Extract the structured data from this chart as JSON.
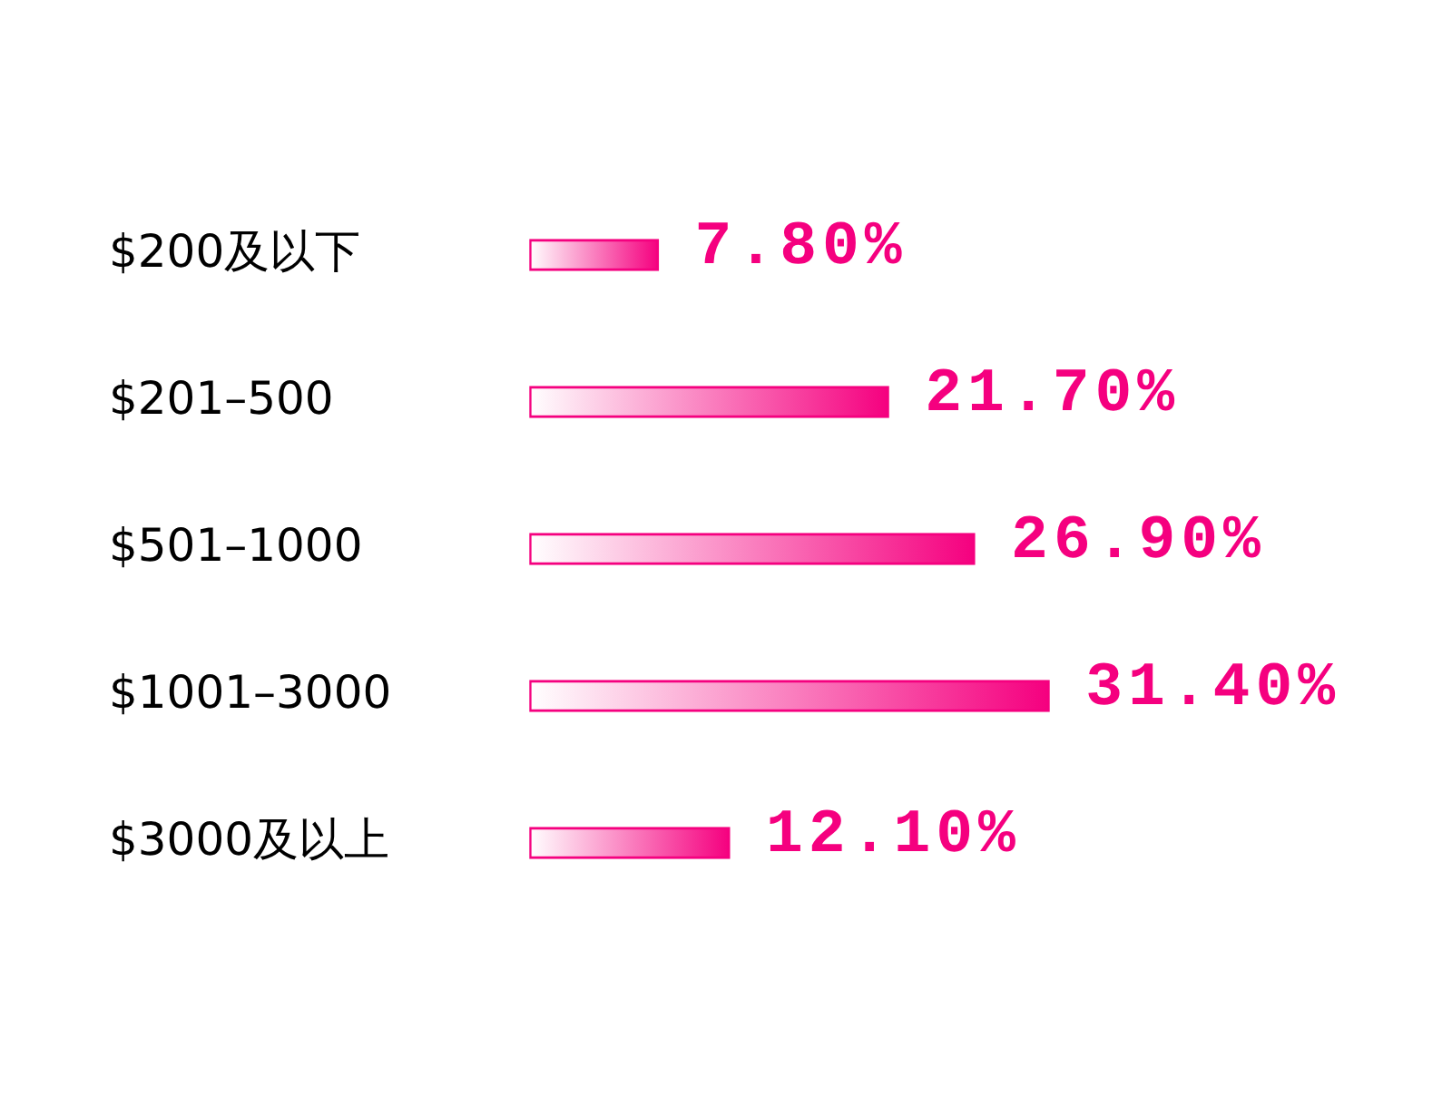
{
  "chart_data": {
    "type": "bar",
    "orientation": "horizontal",
    "categories": [
      "$200及以下",
      "$201–500",
      "$501–1000",
      "$1001–3000",
      "$3000及以上"
    ],
    "values": [
      7.8,
      21.7,
      26.9,
      31.4,
      12.1
    ],
    "value_labels": [
      "7.80%",
      "21.70%",
      "26.90%",
      "31.40%",
      "12.10%"
    ],
    "color": "#f5007f",
    "legend": false,
    "grid": false
  }
}
